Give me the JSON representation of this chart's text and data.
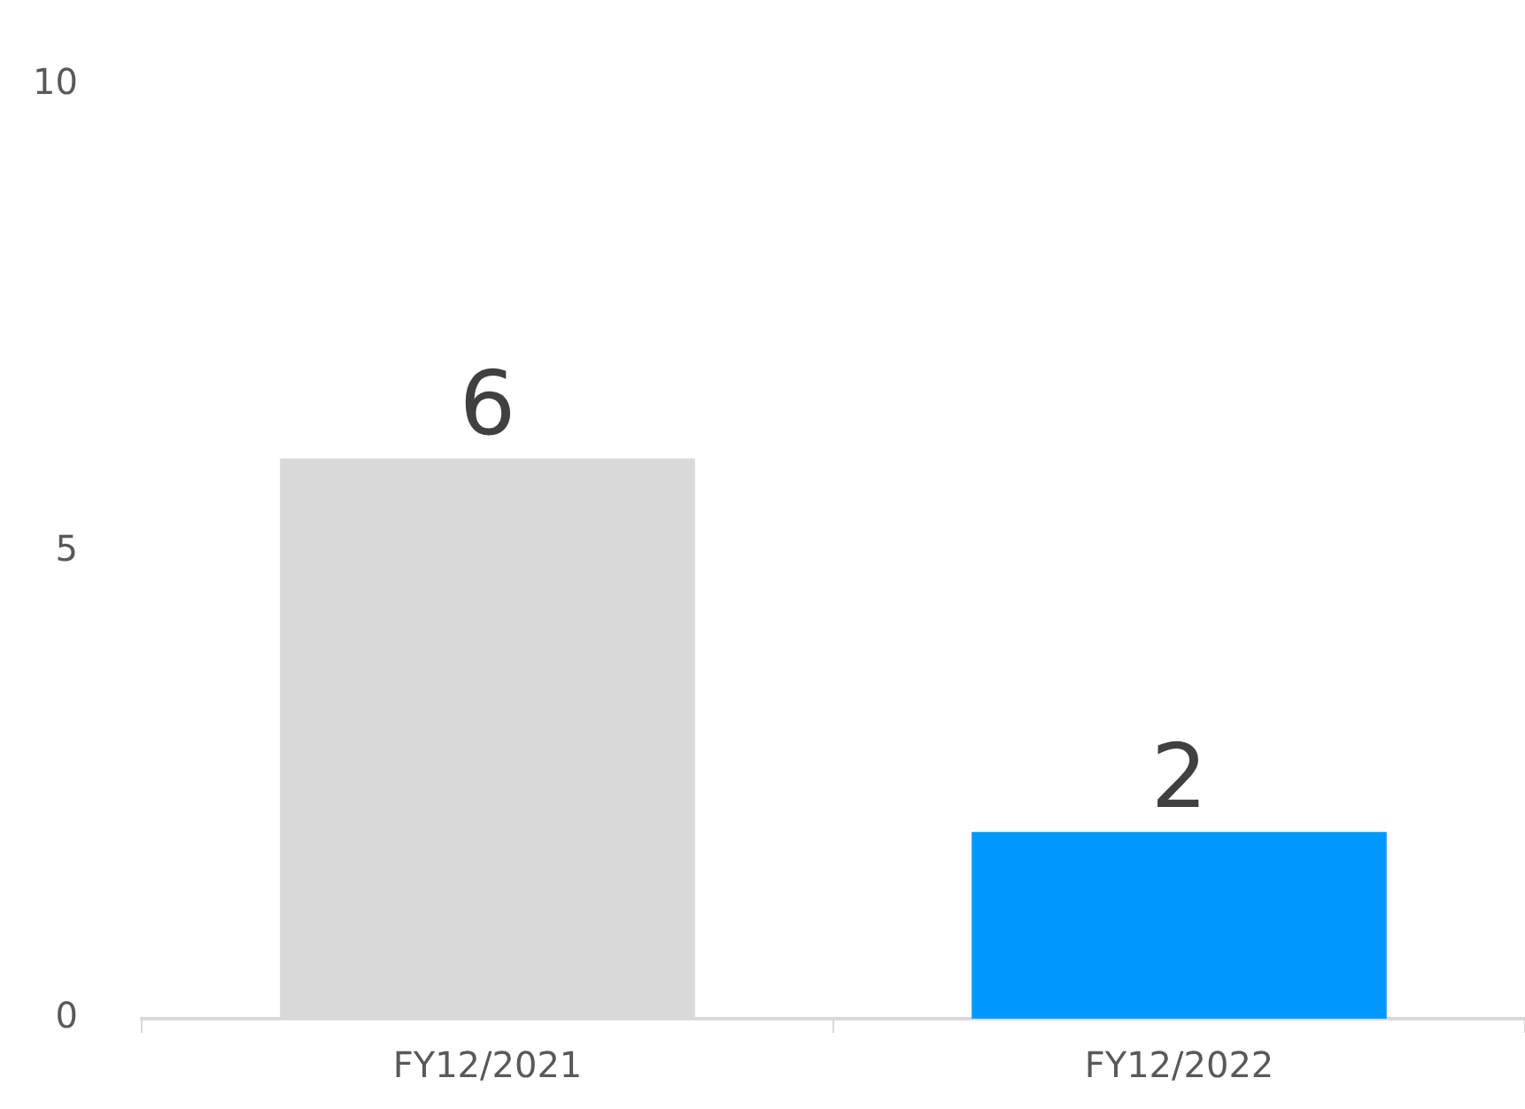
{
  "chart_data": {
    "type": "bar",
    "categories": [
      "FY12/2021",
      "FY12/2022"
    ],
    "values": [
      6,
      2
    ],
    "colors": [
      "#d9d9d9",
      "#0099ff"
    ],
    "ylim": [
      0,
      10
    ],
    "yticks": [
      0,
      5,
      10
    ],
    "grid": false,
    "legend": false,
    "data_labels": true
  }
}
